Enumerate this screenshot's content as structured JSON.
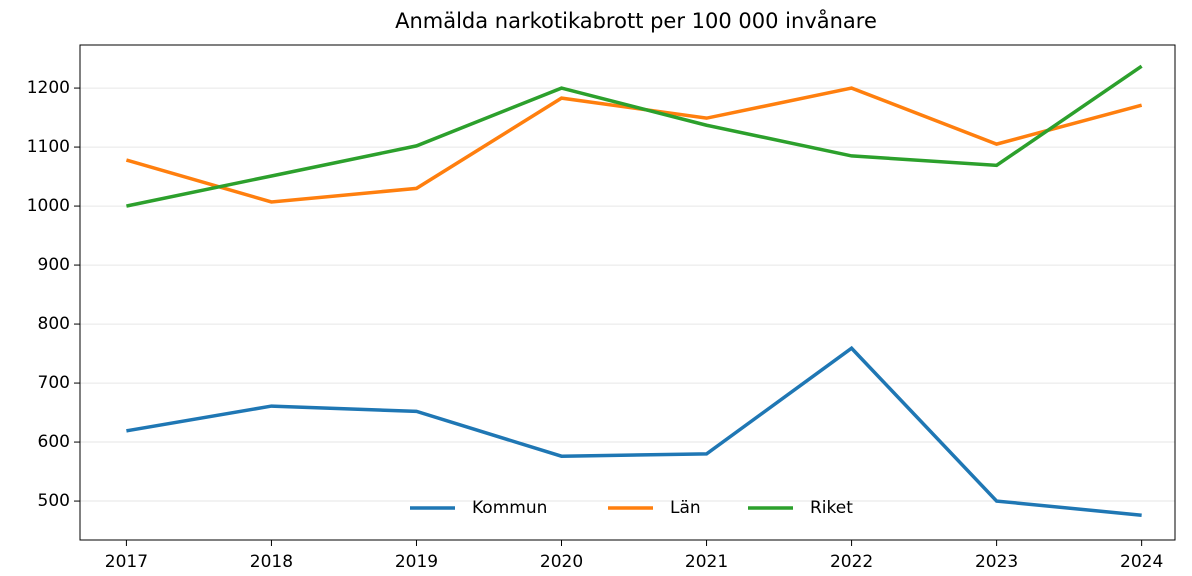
{
  "chart_data": {
    "type": "line",
    "title": "Anmälda narkotikabrott per 100 000 invånare",
    "x": [
      2017,
      2018,
      2019,
      2020,
      2021,
      2022,
      2023,
      2024
    ],
    "series": [
      {
        "name": "Kommun",
        "color": "#1f77b4",
        "values": [
          619,
          661,
          652,
          576,
          580,
          759,
          500,
          476
        ]
      },
      {
        "name": "Län",
        "color": "#ff7f0e",
        "values": [
          1078,
          1007,
          1030,
          1183,
          1149,
          1200,
          1105,
          1171
        ]
      },
      {
        "name": "Riket",
        "color": "#2ca02c",
        "values": [
          1000,
          1051,
          1102,
          1200,
          1137,
          1085,
          1069,
          1237
        ]
      }
    ],
    "xlim": [
      2016.68,
      2024.23
    ],
    "xticks": [
      2017,
      2018,
      2019,
      2020,
      2021,
      2022,
      2023,
      2024
    ],
    "ylim": [
      434,
      1273
    ],
    "yticks": [
      500,
      600,
      700,
      800,
      900,
      1000,
      1100,
      1200
    ],
    "grid": true,
    "legend": "lower center"
  }
}
